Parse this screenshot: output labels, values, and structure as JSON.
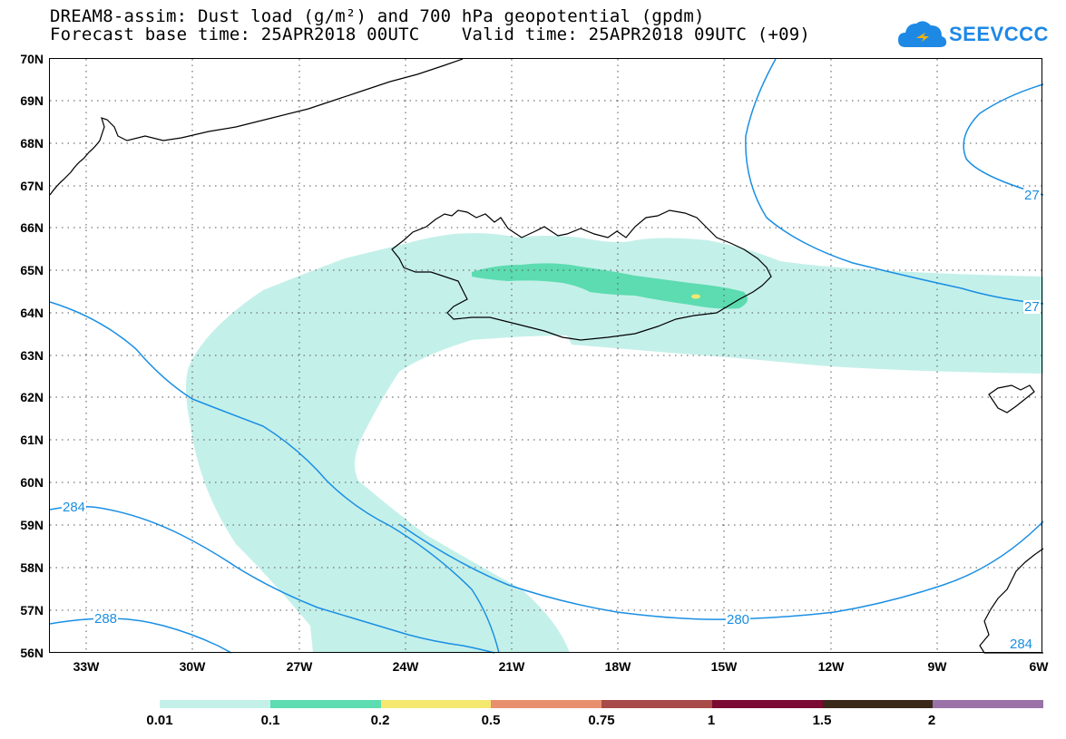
{
  "title": {
    "line1": "DREAM8-assim: Dust load (g/m²) and 700 hPa geopotential (gpdm)",
    "line2": "Forecast base time: 25APR2018 00UTC    Valid time: 25APR2018 09UTC (+09)"
  },
  "logo": {
    "text": "SEEVCCC",
    "icon": "cloud-logo-icon"
  },
  "axes": {
    "lat_labels": [
      "70N",
      "69N",
      "68N",
      "67N",
      "66N",
      "65N",
      "64N",
      "63N",
      "62N",
      "61N",
      "60N",
      "59N",
      "58N",
      "57N",
      "56N"
    ],
    "lon_labels": [
      "33W",
      "30W",
      "27W",
      "24W",
      "21W",
      "18W",
      "15W",
      "12W",
      "9W",
      "6W"
    ],
    "grid": "dotted"
  },
  "contour_labels": [
    "284",
    "288",
    "280",
    "284",
    "27",
    "27"
  ],
  "colorbar": {
    "labels": [
      "0.01",
      "0.1",
      "0.2",
      "0.5",
      "0.75",
      "1",
      "1.5",
      "2"
    ],
    "colors": [
      "#c4f0ea",
      "#5cdcb0",
      "#f5e86e",
      "#e8906e",
      "#a84a48",
      "#7a0a32",
      "#3a2818",
      "#9a72a8"
    ]
  },
  "colors": {
    "contour": "#1a8fe3",
    "dust_low": "#c4f0ea",
    "dust_mid": "#5cdcb0",
    "dust_high": "#f5e86e"
  }
}
